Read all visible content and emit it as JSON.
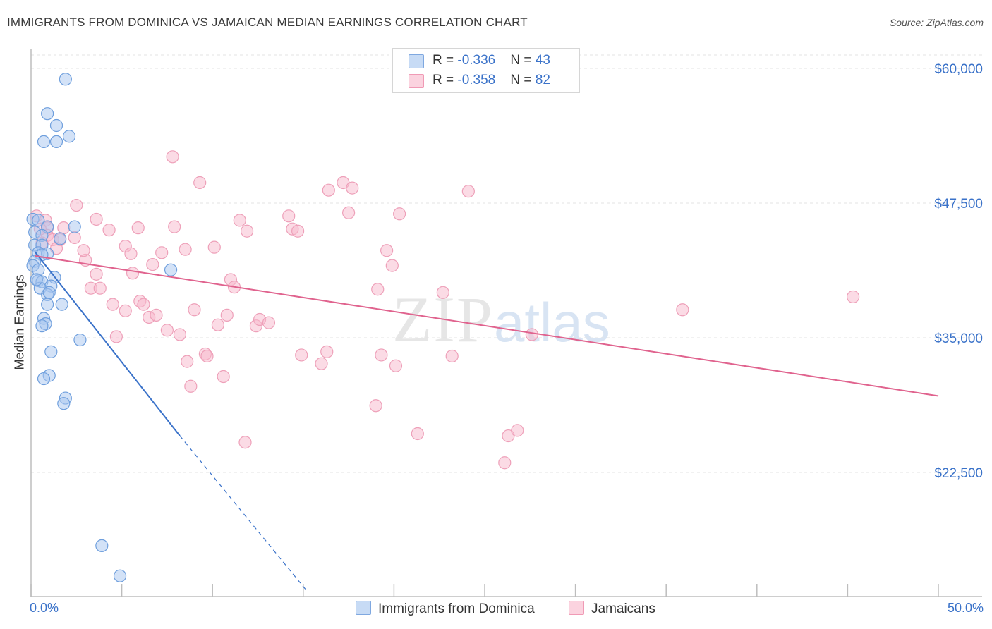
{
  "header": {
    "title": "IMMIGRANTS FROM DOMINICA VS JAMAICAN MEDIAN EARNINGS CORRELATION CHART",
    "source": "Source: ZipAtlas.com"
  },
  "watermark": {
    "zip": "ZIP",
    "atlas": "atlas"
  },
  "legend_top": {
    "rows": [
      {
        "r_label": "R = ",
        "r_value": "-0.336",
        "n_label": "N = ",
        "n_value": "43",
        "color": "#a7c6ef"
      },
      {
        "r_label": "R = ",
        "r_value": "-0.358",
        "n_label": "N = ",
        "n_value": "82",
        "color": "#f7b8cb"
      }
    ]
  },
  "legend_bottom": {
    "items": [
      {
        "label": "Immigrants from Dominica",
        "color": "#a7c6ef"
      },
      {
        "label": "Jamaicans",
        "color": "#f7b8cb"
      }
    ]
  },
  "axes": {
    "x_min_label": "0.0%",
    "x_max_label": "50.0%",
    "y_title": "Median Earnings"
  },
  "colors": {
    "blue": "#3a72c9",
    "blue_fill": "#a7c6ef",
    "pink": "#e0638e",
    "pink_fill": "#f7b8cb",
    "grid": "#e3e3e3"
  },
  "chart_data": {
    "type": "scatter",
    "title": "IMMIGRANTS FROM DOMINICA VS JAMAICAN MEDIAN EARNINGS CORRELATION CHART",
    "xlabel": "",
    "ylabel": "Median Earnings",
    "xlim": [
      0,
      50
    ],
    "ylim": [
      11500,
      61500
    ],
    "x_ticks": [
      0,
      5,
      10,
      15,
      20,
      25,
      30,
      35,
      40,
      45,
      50
    ],
    "y_ticks": [
      22500,
      35000,
      47500,
      60000
    ],
    "y_tick_labels": [
      "$22,500",
      "$35,000",
      "$47,500",
      "$60,000"
    ],
    "series": [
      {
        "name": "Immigrants from Dominica",
        "color": "#3a72c9",
        "fill": "#a7c6ef",
        "r": -0.336,
        "n": 43,
        "trend": {
          "x0": 0.2,
          "y0": 43000,
          "x1": 8.2,
          "y1": 25900,
          "dash_x1": 15.2,
          "dash_y1": 11500
        },
        "points": [
          [
            1.9,
            59000
          ],
          [
            0.9,
            55800
          ],
          [
            1.4,
            54700
          ],
          [
            2.1,
            53700
          ],
          [
            0.7,
            53200
          ],
          [
            1.4,
            53200
          ],
          [
            0.1,
            46000
          ],
          [
            0.4,
            45900
          ],
          [
            0.9,
            45300
          ],
          [
            2.4,
            45300
          ],
          [
            0.2,
            44800
          ],
          [
            0.6,
            44500
          ],
          [
            1.6,
            44200
          ],
          [
            0.2,
            43600
          ],
          [
            0.6,
            43600
          ],
          [
            0.4,
            42900
          ],
          [
            0.9,
            42800
          ],
          [
            0.6,
            42700
          ],
          [
            0.2,
            42100
          ],
          [
            0.1,
            41700
          ],
          [
            0.4,
            41300
          ],
          [
            7.7,
            41300
          ],
          [
            1.3,
            40600
          ],
          [
            0.4,
            40300
          ],
          [
            0.6,
            40200
          ],
          [
            1.1,
            39800
          ],
          [
            0.5,
            39600
          ],
          [
            0.9,
            39000
          ],
          [
            1.0,
            39200
          ],
          [
            0.9,
            38100
          ],
          [
            1.7,
            38100
          ],
          [
            0.7,
            36800
          ],
          [
            0.8,
            36300
          ],
          [
            0.6,
            36100
          ],
          [
            2.7,
            34800
          ],
          [
            1.1,
            33700
          ],
          [
            1.0,
            31500
          ],
          [
            0.7,
            31200
          ],
          [
            1.9,
            29400
          ],
          [
            1.8,
            28900
          ],
          [
            3.9,
            15700
          ],
          [
            4.9,
            12900
          ],
          [
            0.3,
            40400
          ]
        ]
      },
      {
        "name": "Jamaicans",
        "color": "#e0638e",
        "fill": "#f7b8cb",
        "r": -0.358,
        "n": 82,
        "trend": {
          "x0": 0.2,
          "y0": 42600,
          "x1": 50.0,
          "y1": 29600
        },
        "points": [
          [
            0.3,
            46300
          ],
          [
            0.8,
            45900
          ],
          [
            0.9,
            45200
          ],
          [
            0.9,
            44500
          ],
          [
            1.2,
            44100
          ],
          [
            1.6,
            44100
          ],
          [
            1.8,
            45200
          ],
          [
            2.4,
            44300
          ],
          [
            2.5,
            47300
          ],
          [
            0.6,
            43800
          ],
          [
            1.4,
            43300
          ],
          [
            3.0,
            42200
          ],
          [
            2.9,
            43100
          ],
          [
            3.6,
            46000
          ],
          [
            3.6,
            40900
          ],
          [
            3.3,
            39600
          ],
          [
            3.8,
            39600
          ],
          [
            4.3,
            45000
          ],
          [
            4.5,
            38100
          ],
          [
            4.7,
            35100
          ],
          [
            5.2,
            43500
          ],
          [
            5.2,
            37500
          ],
          [
            5.5,
            42800
          ],
          [
            5.6,
            41000
          ],
          [
            5.9,
            45200
          ],
          [
            6.0,
            38400
          ],
          [
            6.2,
            38100
          ],
          [
            6.5,
            36900
          ],
          [
            6.7,
            41800
          ],
          [
            6.9,
            37100
          ],
          [
            7.2,
            42900
          ],
          [
            7.5,
            35700
          ],
          [
            7.8,
            51800
          ],
          [
            7.9,
            45300
          ],
          [
            8.2,
            35300
          ],
          [
            8.5,
            43200
          ],
          [
            8.6,
            32800
          ],
          [
            8.8,
            30500
          ],
          [
            9.0,
            37600
          ],
          [
            9.3,
            49400
          ],
          [
            9.6,
            33500
          ],
          [
            9.7,
            33300
          ],
          [
            10.1,
            43400
          ],
          [
            10.3,
            36200
          ],
          [
            10.6,
            31400
          ],
          [
            10.8,
            37100
          ],
          [
            11.0,
            40400
          ],
          [
            11.2,
            39700
          ],
          [
            11.5,
            45900
          ],
          [
            11.8,
            25300
          ],
          [
            11.9,
            44900
          ],
          [
            12.4,
            36100
          ],
          [
            12.6,
            36700
          ],
          [
            13.1,
            36400
          ],
          [
            14.2,
            46300
          ],
          [
            14.4,
            45100
          ],
          [
            14.7,
            44900
          ],
          [
            14.9,
            33400
          ],
          [
            16.0,
            32600
          ],
          [
            16.3,
            33700
          ],
          [
            16.4,
            48700
          ],
          [
            17.2,
            49400
          ],
          [
            17.5,
            46600
          ],
          [
            17.7,
            48900
          ],
          [
            19.1,
            39500
          ],
          [
            19.0,
            28700
          ],
          [
            19.3,
            33400
          ],
          [
            19.6,
            43100
          ],
          [
            19.9,
            41700
          ],
          [
            20.1,
            32400
          ],
          [
            20.3,
            46500
          ],
          [
            21.3,
            26100
          ],
          [
            22.7,
            39200
          ],
          [
            23.2,
            33300
          ],
          [
            24.1,
            48600
          ],
          [
            26.1,
            23400
          ],
          [
            26.3,
            25900
          ],
          [
            26.8,
            26400
          ],
          [
            27.6,
            35300
          ],
          [
            35.9,
            37600
          ],
          [
            45.3,
            38800
          ],
          [
            0.5,
            45100
          ]
        ]
      }
    ]
  }
}
